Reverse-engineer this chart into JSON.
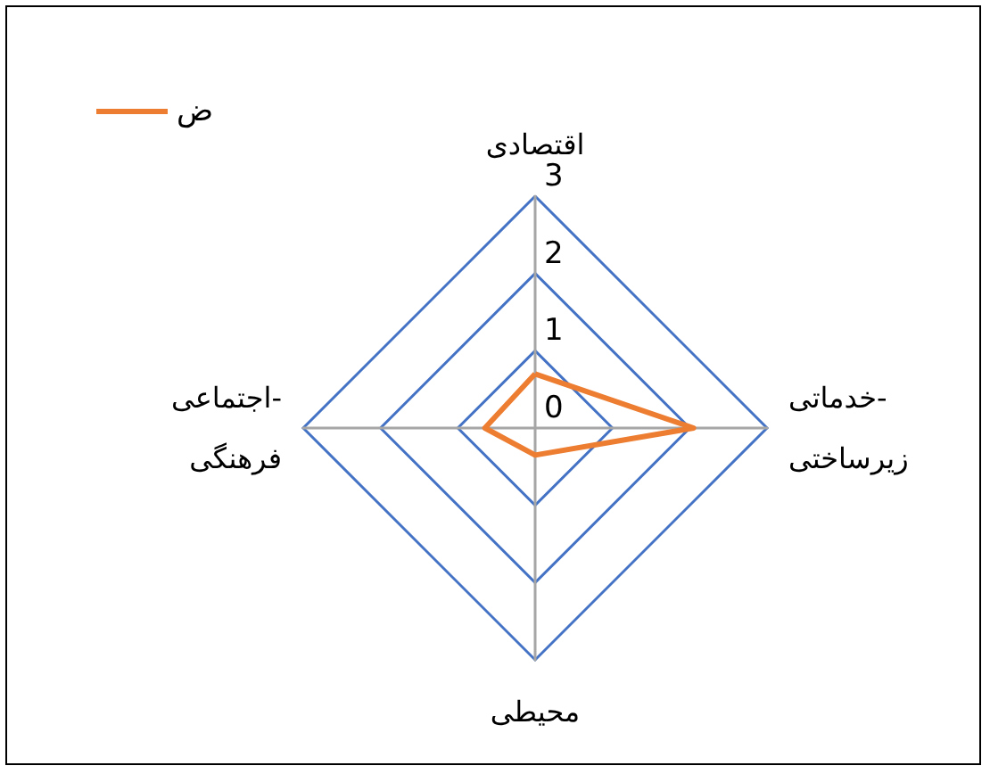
{
  "chart_data": {
    "type": "radar",
    "categories": [
      "اقتصادی",
      "خدماتی-\nزیرساختی",
      "محیطی",
      "اجتماعی-\nفرهنگی"
    ],
    "series": [
      {
        "name": "ض",
        "color": "#ed7d31",
        "values": [
          0.7,
          2.05,
          0.35,
          0.65
        ]
      }
    ],
    "ylim": [
      0,
      3
    ],
    "yticks": [
      0,
      1,
      2,
      3
    ],
    "grid": true,
    "legend": "top left",
    "marker": "none",
    "line_style": "solid"
  }
}
